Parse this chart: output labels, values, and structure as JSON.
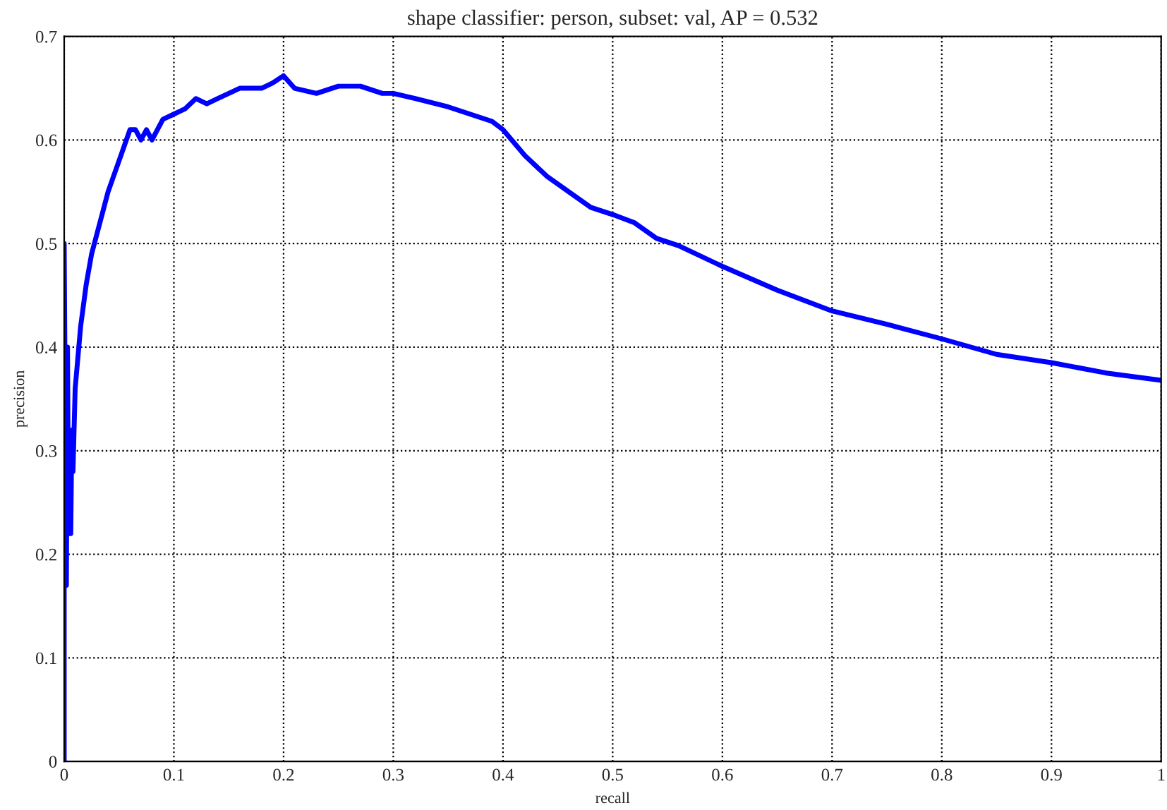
{
  "chart_data": {
    "type": "line",
    "title": "shape classifier: person, subset: val, AP = 0.532",
    "xlabel": "recall",
    "ylabel": "precision",
    "x": [
      0,
      0,
      0.002,
      0.003,
      0.004,
      0.006,
      0.007,
      0.008,
      0.01,
      0.015,
      0.02,
      0.025,
      0.03,
      0.04,
      0.05,
      0.06,
      0.065,
      0.07,
      0.075,
      0.08,
      0.09,
      0.1,
      0.11,
      0.12,
      0.13,
      0.14,
      0.15,
      0.16,
      0.18,
      0.19,
      0.2,
      0.21,
      0.23,
      0.25,
      0.27,
      0.29,
      0.3,
      0.32,
      0.35,
      0.37,
      0.39,
      0.4,
      0.42,
      0.44,
      0.46,
      0.48,
      0.5,
      0.52,
      0.54,
      0.56,
      0.6,
      0.65,
      0.7,
      0.75,
      0.8,
      0.85,
      0.9,
      0.95,
      1.0
    ],
    "series": [
      {
        "color": "#0000ff",
        "values": [
          0,
          0.5,
          0.17,
          0.4,
          0.22,
          0.22,
          0.32,
          0.28,
          0.36,
          0.42,
          0.46,
          0.49,
          0.51,
          0.55,
          0.58,
          0.61,
          0.61,
          0.6,
          0.61,
          0.6,
          0.62,
          0.625,
          0.63,
          0.64,
          0.635,
          0.64,
          0.645,
          0.65,
          0.65,
          0.655,
          0.662,
          0.65,
          0.645,
          0.652,
          0.652,
          0.645,
          0.645,
          0.64,
          0.632,
          0.625,
          0.618,
          0.61,
          0.585,
          0.565,
          0.55,
          0.535,
          0.528,
          0.52,
          0.505,
          0.498,
          0.478,
          0.455,
          0.435,
          0.422,
          0.408,
          0.393,
          0.385,
          0.375,
          0.368
        ]
      }
    ],
    "xlim": [
      0,
      1
    ],
    "xticks": [
      0,
      0.1,
      0.2,
      0.3,
      0.4,
      0.5,
      0.6,
      0.7,
      0.8,
      0.9,
      1
    ],
    "ylim": [
      0,
      0.7
    ],
    "yticks": [
      0,
      0.1,
      0.2,
      0.3,
      0.4,
      0.5,
      0.6,
      0.7
    ],
    "grid": true,
    "line_style": "solid",
    "marker": "none"
  }
}
